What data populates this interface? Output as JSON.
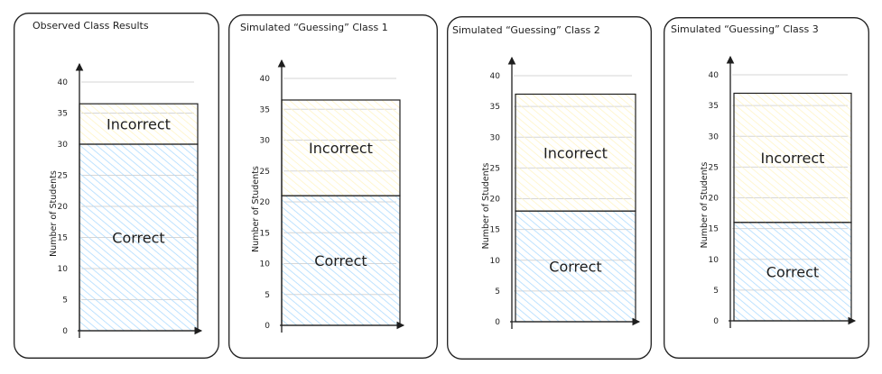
{
  "chart_data": [
    {
      "type": "bar",
      "stacked": true,
      "title": "Observed Class Results",
      "ylabel": "Number of Students",
      "ylim": [
        0,
        40
      ],
      "yticks": [
        0,
        5,
        10,
        15,
        20,
        25,
        30,
        35,
        40
      ],
      "series": [
        {
          "name": "Correct",
          "values": [
            30
          ],
          "color": "#a5d8ff"
        },
        {
          "name": "Incorrect",
          "values": [
            6.5
          ],
          "color": "#fff3bf"
        }
      ]
    },
    {
      "type": "bar",
      "stacked": true,
      "title": "Simulated “Guessing” Class 1",
      "ylabel": "Number of Students",
      "ylim": [
        0,
        40
      ],
      "yticks": [
        0,
        5,
        10,
        15,
        20,
        25,
        30,
        35,
        40
      ],
      "series": [
        {
          "name": "Correct",
          "values": [
            21
          ],
          "color": "#a5d8ff"
        },
        {
          "name": "Incorrect",
          "values": [
            15.5
          ],
          "color": "#fff3bf"
        }
      ]
    },
    {
      "type": "bar",
      "stacked": true,
      "title": "Simulated “Guessing” Class 2",
      "ylabel": "Number of Students",
      "ylim": [
        0,
        40
      ],
      "yticks": [
        0,
        5,
        10,
        15,
        20,
        25,
        30,
        35,
        40
      ],
      "series": [
        {
          "name": "Correct",
          "values": [
            18
          ],
          "color": "#a5d8ff"
        },
        {
          "name": "Incorrect",
          "values": [
            19
          ],
          "color": "#fff3bf"
        }
      ]
    },
    {
      "type": "bar",
      "stacked": true,
      "title": "Simulated “Guessing” Class 3",
      "ylabel": "Number of Students",
      "ylim": [
        0,
        40
      ],
      "yticks": [
        0,
        5,
        10,
        15,
        20,
        25,
        30,
        35,
        40
      ],
      "series": [
        {
          "name": "Correct",
          "values": [
            16
          ],
          "color": "#a5d8ff"
        },
        {
          "name": "Incorrect",
          "values": [
            21
          ],
          "color": "#fff3bf"
        }
      ]
    }
  ]
}
